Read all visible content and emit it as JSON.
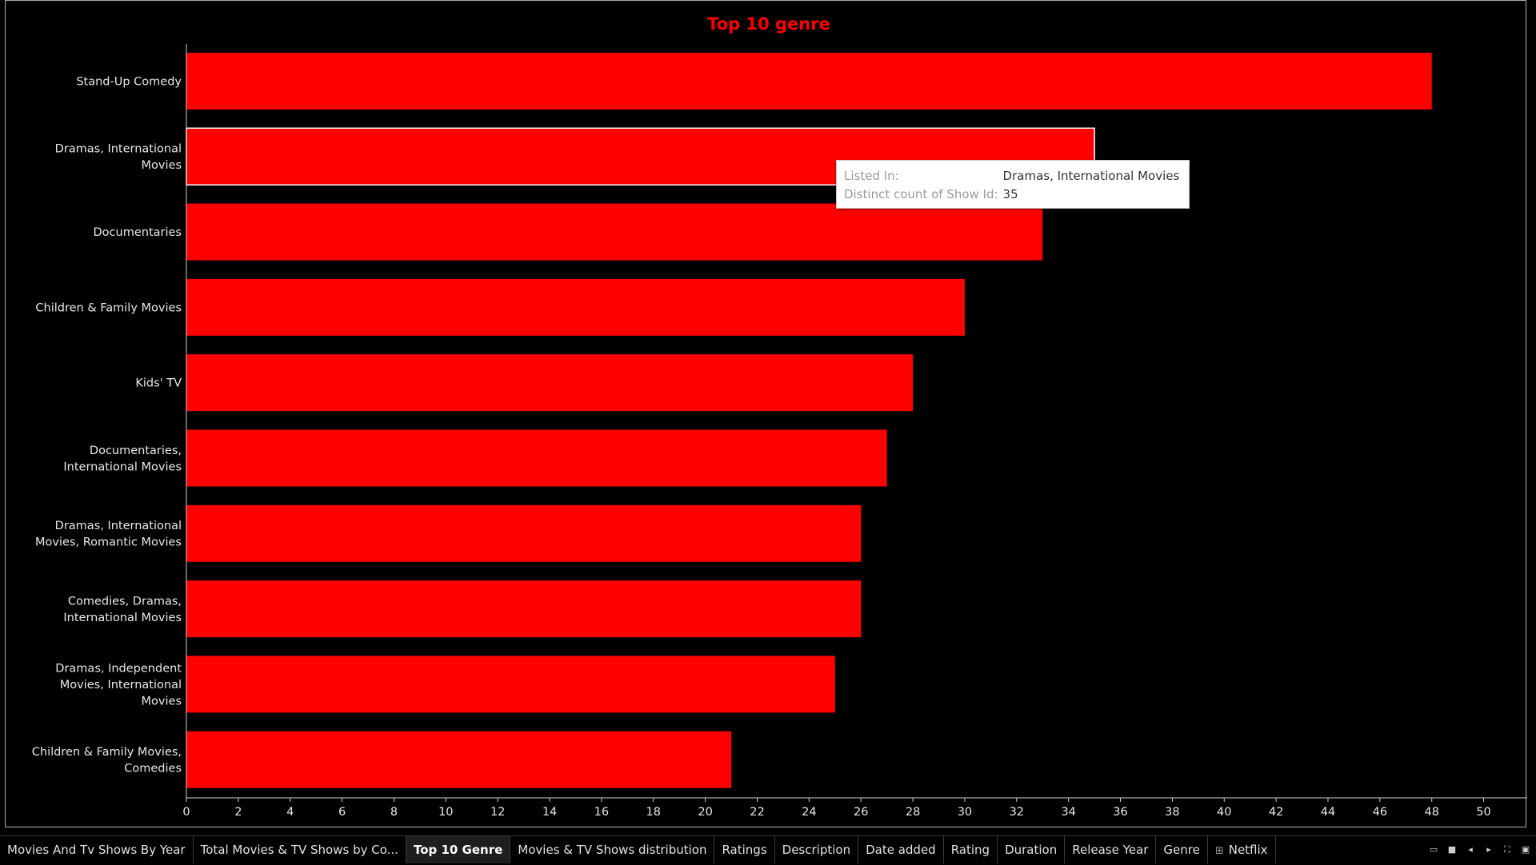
{
  "chart_data": {
    "type": "bar",
    "orientation": "horizontal",
    "title": "Top 10 genre",
    "categories": [
      [
        "Stand-Up Comedy"
      ],
      [
        "Dramas, International",
        "Movies"
      ],
      [
        "Documentaries"
      ],
      [
        "Children & Family Movies"
      ],
      [
        "Kids' TV"
      ],
      [
        "Documentaries,",
        "International Movies"
      ],
      [
        "Dramas, International",
        "Movies, Romantic Movies"
      ],
      [
        "Comedies, Dramas,",
        "International Movies"
      ],
      [
        "Dramas, Independent",
        "Movies, International",
        "Movies"
      ],
      [
        "Children & Family Movies,",
        "Comedies"
      ]
    ],
    "values": [
      48,
      35,
      33,
      30,
      28,
      27,
      26,
      26,
      25,
      21
    ],
    "xlim": [
      0,
      51
    ],
    "xticks": [
      0,
      2,
      4,
      6,
      8,
      10,
      12,
      14,
      16,
      18,
      20,
      22,
      24,
      26,
      28,
      30,
      32,
      34,
      36,
      38,
      40,
      42,
      44,
      46,
      48,
      50
    ],
    "bar_color": "#ff0000",
    "highlighted_index": 1,
    "grid": false
  },
  "tooltip": {
    "rows": [
      {
        "key": "Listed In:",
        "value": "Dramas, International Movies"
      },
      {
        "key": "Distinct count of Show Id:",
        "value": "35"
      }
    ]
  },
  "tabs": [
    {
      "label": "Movies And Tv Shows By Year",
      "active": false
    },
    {
      "label": "Total Movies & TV Shows by Co...",
      "active": false
    },
    {
      "label": "Top 10 Genre",
      "active": true
    },
    {
      "label": "Movies & TV Shows distribution",
      "active": false
    },
    {
      "label": "Ratings",
      "active": false
    },
    {
      "label": "Description",
      "active": false
    },
    {
      "label": "Date added",
      "active": false
    },
    {
      "label": "Rating",
      "active": false
    },
    {
      "label": "Duration",
      "active": false
    },
    {
      "label": "Release Year",
      "active": false
    },
    {
      "label": "Genre",
      "active": false
    },
    {
      "label": "Netflix",
      "active": false,
      "icon": "dashboard-grid-icon"
    }
  ],
  "controls": [
    {
      "name": "show-filmstrip-icon",
      "glyph": "▭"
    },
    {
      "name": "show-tabs-icon",
      "glyph": "■"
    },
    {
      "name": "previous-sheet-icon",
      "glyph": "◂"
    },
    {
      "name": "next-sheet-icon",
      "glyph": "▸"
    },
    {
      "name": "fullscreen-icon",
      "glyph": "⛶"
    },
    {
      "name": "presentation-mode-icon",
      "glyph": "▣"
    }
  ]
}
